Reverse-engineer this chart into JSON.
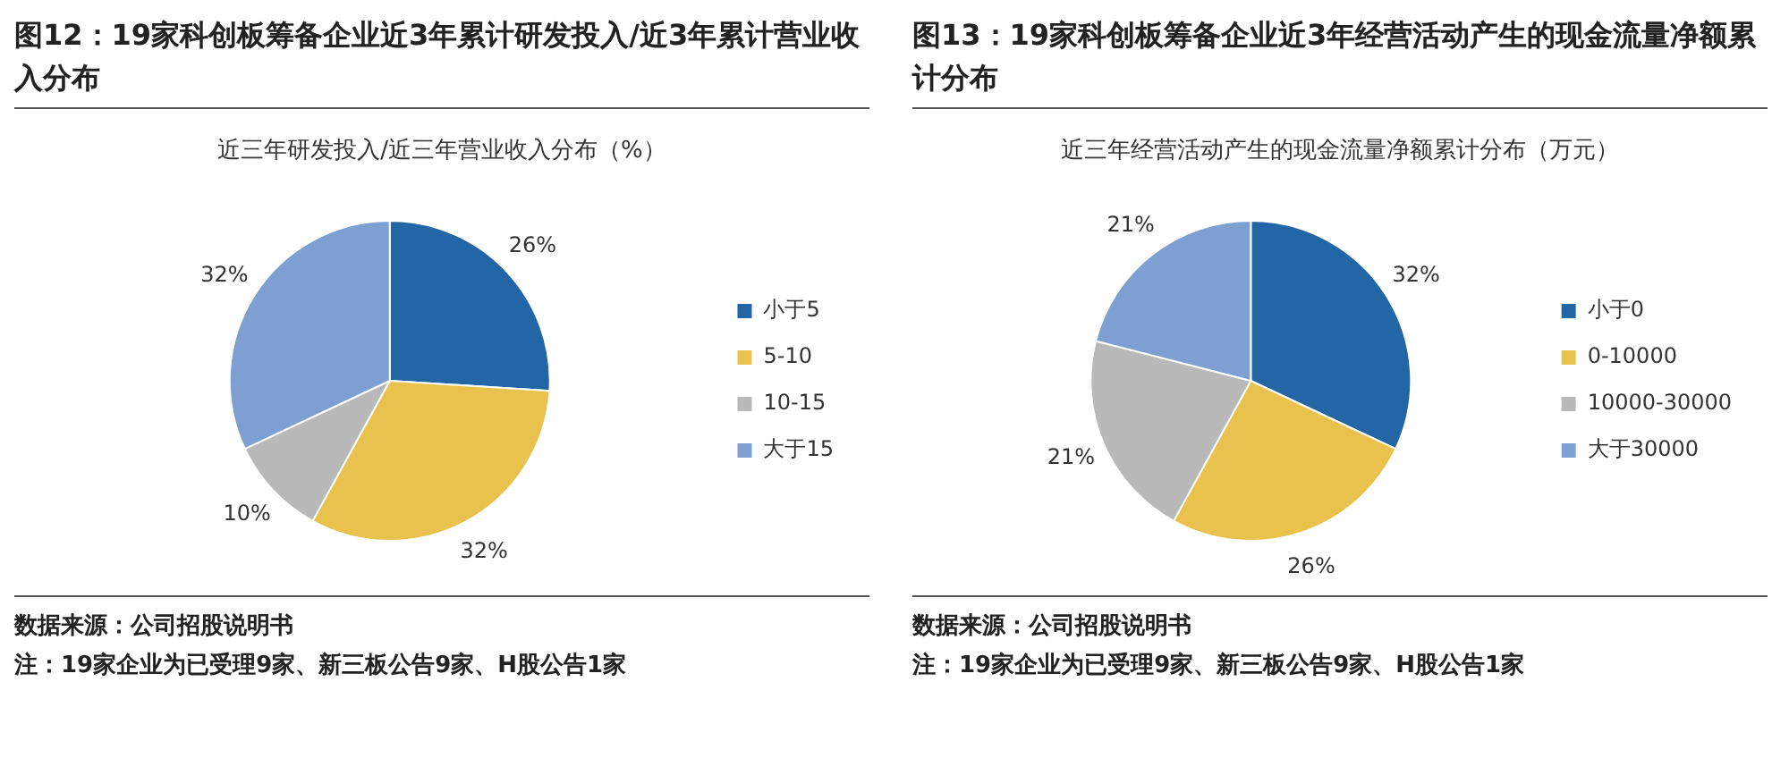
{
  "chart_data": [
    {
      "type": "pie",
      "title": "图12：19家科创板筹备企业近3年累计研发投入/近3年累计营业收入分布",
      "subtitle": "近三年研发投入/近三年营业收入分布（%）",
      "categories": [
        "小于5",
        "5-10",
        "10-15",
        "大于15"
      ],
      "values": [
        26,
        32,
        10,
        32
      ],
      "colors": [
        "#2266a6",
        "#e9c14d",
        "#b9b9b9",
        "#7e9fd2"
      ],
      "value_labels": [
        "26%",
        "32%",
        "10%",
        "32%"
      ],
      "legend": "right",
      "annotations": [
        "数据来源：公司招股说明书",
        "注：19家企业为已受理9家、新三板公告9家、H股公告1家"
      ]
    },
    {
      "type": "pie",
      "title": "图13：19家科创板筹备企业近3年经营活动产生的现金流量净额累计分布",
      "subtitle": "近三年经营活动产生的现金流量净额累计分布（万元）",
      "categories": [
        "小于0",
        "0-10000",
        "10000-30000",
        "大于30000"
      ],
      "values": [
        32,
        26,
        21,
        21
      ],
      "colors": [
        "#2266a6",
        "#e9c14d",
        "#b9b9b9",
        "#7e9fd2"
      ],
      "value_labels": [
        "32%",
        "26%",
        "21%",
        "21%"
      ],
      "legend": "right",
      "annotations": [
        "数据来源：公司招股说明书",
        "注：19家企业为已受理9家、新三板公告9家、H股公告1家"
      ]
    }
  ]
}
